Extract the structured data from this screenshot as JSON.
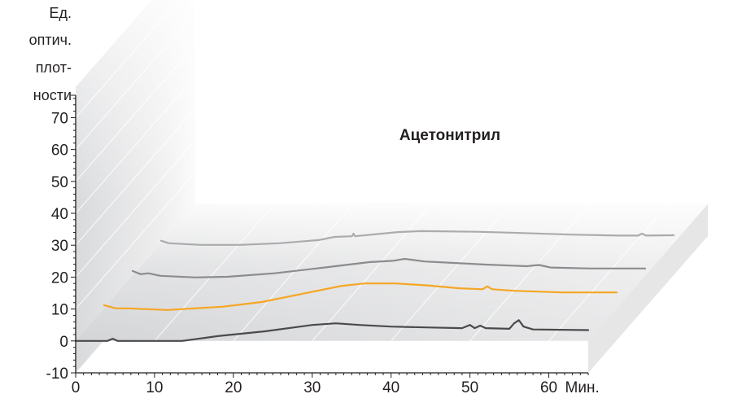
{
  "chart_data": {
    "type": "line",
    "title": "Ацетонитрил",
    "ylabel": [
      "Ед.",
      "оптич.",
      "плот-",
      "ности"
    ],
    "xlabel_unit": "Мин.",
    "x_ticks": [
      "0",
      "10",
      "20",
      "30",
      "40",
      "50",
      "60"
    ],
    "y_ticks": [
      "-10",
      "0",
      "10",
      "20",
      "30",
      "40",
      "50",
      "60",
      "70"
    ],
    "xlim": [
      0,
      65
    ],
    "ylim": [
      -10,
      77
    ],
    "grid": true,
    "series": [
      {
        "color": "#4a4a4c",
        "points": [
          [
            0,
            0
          ],
          [
            2,
            0
          ],
          [
            4,
            0
          ],
          [
            4.7,
            0.7
          ],
          [
            5.3,
            0
          ],
          [
            13.5,
            0
          ],
          [
            18,
            1.5
          ],
          [
            24,
            3
          ],
          [
            30,
            5
          ],
          [
            33,
            5.5
          ],
          [
            36,
            5
          ],
          [
            40,
            4.5
          ],
          [
            45,
            4.2
          ],
          [
            49,
            4
          ],
          [
            50,
            5
          ],
          [
            50.6,
            4
          ],
          [
            51.3,
            4.8
          ],
          [
            52,
            4
          ],
          [
            55,
            3.8
          ],
          [
            55.6,
            5.5
          ],
          [
            56.2,
            6.5
          ],
          [
            56.8,
            4.5
          ],
          [
            58,
            3.6
          ],
          [
            65,
            3.4
          ]
        ]
      },
      {
        "color": "#f5a623",
        "points": [
          [
            0,
            1
          ],
          [
            1.5,
            0
          ],
          [
            3,
            0
          ],
          [
            8,
            -0.5
          ],
          [
            15,
            0.5
          ],
          [
            20,
            2
          ],
          [
            25,
            4.5
          ],
          [
            30,
            7
          ],
          [
            33,
            7.8
          ],
          [
            37,
            7.8
          ],
          [
            41,
            7.2
          ],
          [
            45,
            6.3
          ],
          [
            48,
            6
          ],
          [
            48.6,
            6.9
          ],
          [
            49.2,
            6
          ],
          [
            52,
            5.5
          ],
          [
            58,
            5
          ],
          [
            65,
            5
          ]
        ]
      },
      {
        "color": "#8c8c8e",
        "points": [
          [
            0,
            1.5
          ],
          [
            1,
            0.5
          ],
          [
            2,
            0.8
          ],
          [
            3.5,
            0
          ],
          [
            8,
            -0.5
          ],
          [
            12,
            -0.3
          ],
          [
            18,
            0.8
          ],
          [
            24,
            2.5
          ],
          [
            30,
            4.3
          ],
          [
            33,
            4.7
          ],
          [
            34.5,
            5.3
          ],
          [
            37,
            4.5
          ],
          [
            41,
            4
          ],
          [
            45,
            3.5
          ],
          [
            50,
            3
          ],
          [
            51.5,
            3.4
          ],
          [
            53,
            2.6
          ],
          [
            58,
            2.3
          ],
          [
            65,
            2.3
          ]
        ]
      },
      {
        "color": "#ababad",
        "points": [
          [
            0,
            0.8
          ],
          [
            1,
            0
          ],
          [
            5,
            -0.5
          ],
          [
            10,
            -0.5
          ],
          [
            15,
            0
          ],
          [
            20,
            1
          ],
          [
            22,
            2
          ],
          [
            24.2,
            2.2
          ],
          [
            24.4,
            3
          ],
          [
            24.6,
            2.2
          ],
          [
            30,
            3.5
          ],
          [
            33,
            3.8
          ],
          [
            40,
            3.6
          ],
          [
            46,
            3.2
          ],
          [
            52,
            2.7
          ],
          [
            58,
            2.4
          ],
          [
            60.5,
            2.4
          ],
          [
            61,
            3
          ],
          [
            61.5,
            2.4
          ],
          [
            65,
            2.5
          ]
        ]
      }
    ]
  }
}
